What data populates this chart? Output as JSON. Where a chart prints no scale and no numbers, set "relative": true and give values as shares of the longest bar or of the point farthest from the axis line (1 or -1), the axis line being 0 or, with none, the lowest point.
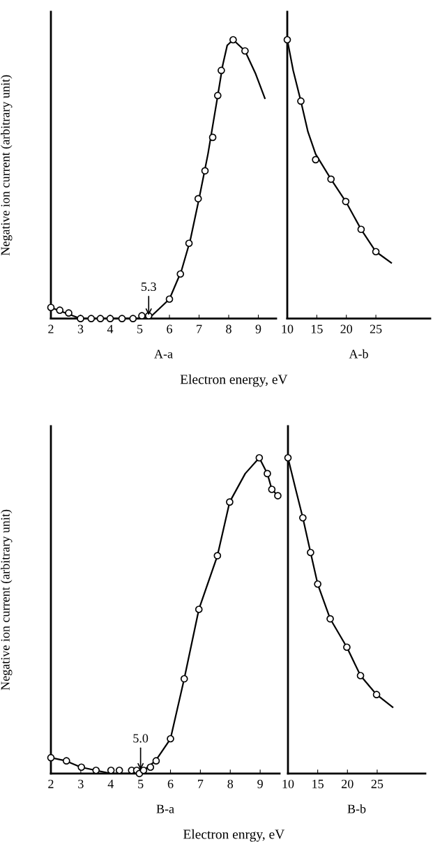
{
  "chart_data": [
    {
      "type": "line",
      "relative": true,
      "xlabel": "A-a",
      "ylabel": "Negative ion current (arbitrary unit)",
      "xlim": [
        2,
        9.6
      ],
      "xticks": [
        2,
        3,
        4,
        5,
        6,
        7,
        8,
        9
      ],
      "annotations": [
        {
          "text": "5.3",
          "x": 5.3,
          "y": 0.0
        },
        "Electron energy, eV"
      ],
      "series": [
        {
          "type": "scatter",
          "marker": "circle",
          "color": "#000000",
          "x": [
            2.0,
            2.3,
            2.6,
            3.0,
            3.36,
            3.67,
            4.0,
            4.4,
            4.77,
            5.07,
            5.3,
            6.0,
            6.37,
            6.66,
            6.97,
            7.2,
            7.46,
            7.63,
            7.75,
            8.15,
            8.55
          ],
          "values": [
            0.04,
            0.03,
            0.02,
            0.0,
            0.0,
            0.0,
            0.0,
            0.0,
            0.0,
            0.01,
            0.01,
            0.07,
            0.16,
            0.27,
            0.43,
            0.53,
            0.65,
            0.8,
            0.89,
            1.0,
            0.96
          ]
        },
        {
          "marker": "none",
          "color": "#000000",
          "x": [
            2.0,
            2.5,
            3.0,
            5.3,
            5.6,
            6.0,
            6.4,
            6.7,
            7.0,
            7.3,
            7.6,
            7.8,
            7.95,
            8.15,
            8.55,
            8.9,
            9.22
          ],
          "values": [
            0.04,
            0.02,
            0.0,
            0.0,
            0.03,
            0.07,
            0.17,
            0.28,
            0.43,
            0.59,
            0.78,
            0.91,
            0.98,
            1.0,
            0.96,
            0.88,
            0.79
          ]
        }
      ]
    },
    {
      "type": "line",
      "relative": true,
      "xlabel": "A-b",
      "xlim": [
        10,
        34.2
      ],
      "xticks": [
        10,
        15,
        20,
        25
      ],
      "series": [
        {
          "type": "scatter",
          "marker": "circle",
          "color": "#000000",
          "x": [
            10.0,
            12.3,
            14.8,
            17.4,
            19.9,
            22.5,
            25.0
          ],
          "values": [
            1.0,
            0.78,
            0.57,
            0.5,
            0.42,
            0.32,
            0.24
          ]
        },
        {
          "marker": "none",
          "color": "#000000",
          "x": [
            10.0,
            11.0,
            12.3,
            13.5,
            14.8,
            17.4,
            19.9,
            22.5,
            25.0,
            27.6
          ],
          "values": [
            1.0,
            0.89,
            0.78,
            0.67,
            0.59,
            0.5,
            0.42,
            0.32,
            0.24,
            0.2
          ]
        }
      ]
    },
    {
      "type": "line",
      "relative": true,
      "xlabel": "B-a",
      "ylabel": "Negative ion current (arbitrary unit)",
      "xlim": [
        2,
        9.65
      ],
      "xticks": [
        2,
        3,
        4,
        5,
        6,
        7,
        8,
        9
      ],
      "annotations": [
        {
          "text": "5.0",
          "x": 5.0,
          "y": 0.0
        },
        "Electron enrgy, eV"
      ],
      "series": [
        {
          "type": "scatter",
          "marker": "circle",
          "color": "#000000",
          "x": [
            2.0,
            2.52,
            3.02,
            3.51,
            4.01,
            4.29,
            4.7,
            4.87,
            4.96,
            5.1,
            5.33,
            5.52,
            6.0,
            6.46,
            6.95,
            7.57,
            7.98,
            8.97,
            9.24,
            9.39,
            9.59
          ],
          "values": [
            0.05,
            0.04,
            0.02,
            0.01,
            0.01,
            0.01,
            0.01,
            0.01,
            0.0,
            0.01,
            0.02,
            0.04,
            0.11,
            0.3,
            0.52,
            0.69,
            0.86,
            1.0,
            0.95,
            0.9,
            0.88
          ]
        },
        {
          "marker": "none",
          "color": "#000000",
          "x": [
            2.0,
            2.5,
            3.0,
            3.5,
            4.0,
            4.9,
            5.1,
            5.5,
            6.0,
            6.46,
            6.95,
            7.57,
            7.98,
            8.5,
            8.97,
            9.24,
            9.39,
            9.59
          ],
          "values": [
            0.05,
            0.04,
            0.02,
            0.01,
            0.0,
            0.0,
            0.01,
            0.04,
            0.11,
            0.3,
            0.52,
            0.69,
            0.86,
            0.95,
            1.0,
            0.95,
            0.9,
            0.88
          ]
        }
      ]
    },
    {
      "type": "line",
      "relative": true,
      "xlabel": "B-b",
      "xlim": [
        10,
        33.1
      ],
      "xticks": [
        10,
        15,
        20,
        25
      ],
      "series": [
        {
          "type": "scatter",
          "marker": "circle",
          "color": "#000000",
          "x": [
            10.0,
            12.5,
            13.8,
            15.0,
            17.1,
            19.9,
            22.2,
            24.9
          ],
          "values": [
            1.0,
            0.81,
            0.7,
            0.6,
            0.49,
            0.4,
            0.31,
            0.25
          ]
        },
        {
          "marker": "none",
          "color": "#000000",
          "x": [
            10.0,
            11.3,
            12.5,
            13.8,
            15.0,
            17.1,
            19.9,
            22.2,
            24.9,
            27.6
          ],
          "values": [
            1.0,
            0.9,
            0.81,
            0.7,
            0.6,
            0.49,
            0.4,
            0.31,
            0.25,
            0.21
          ]
        }
      ]
    }
  ]
}
